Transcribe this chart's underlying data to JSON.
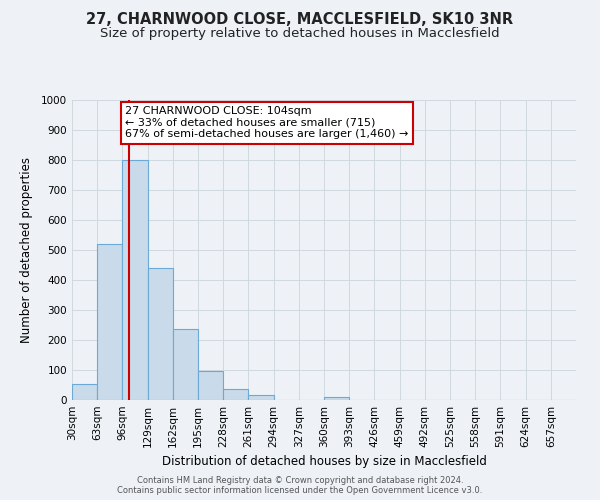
{
  "title": "27, CHARNWOOD CLOSE, MACCLESFIELD, SK10 3NR",
  "subtitle": "Size of property relative to detached houses in Macclesfield",
  "xlabel": "Distribution of detached houses by size in Macclesfield",
  "ylabel": "Number of detached properties",
  "bar_edges": [
    30,
    63,
    96,
    129,
    162,
    195,
    228,
    261,
    294,
    327,
    360,
    393,
    426,
    459,
    492,
    525,
    558,
    591,
    624,
    657,
    690
  ],
  "bar_heights": [
    52,
    520,
    800,
    440,
    238,
    97,
    38,
    18,
    0,
    0,
    10,
    0,
    0,
    0,
    0,
    0,
    0,
    0,
    0,
    0
  ],
  "bar_color": "#c9daea",
  "bar_edge_color": "#6aaad4",
  "property_size": 104,
  "vline_color": "#cc0000",
  "annotation_line1": "27 CHARNWOOD CLOSE: 104sqm",
  "annotation_line2": "← 33% of detached houses are smaller (715)",
  "annotation_line3": "67% of semi-detached houses are larger (1,460) →",
  "annotation_box_color": "#ffffff",
  "annotation_box_edge": "#cc0000",
  "ylim": [
    0,
    1000
  ],
  "yticks": [
    0,
    100,
    200,
    300,
    400,
    500,
    600,
    700,
    800,
    900,
    1000
  ],
  "grid_color": "#d0d8e0",
  "bg_color": "#eef2f7",
  "footer_line1": "Contains HM Land Registry data © Crown copyright and database right 2024.",
  "footer_line2": "Contains public sector information licensed under the Open Government Licence v3.0.",
  "title_fontsize": 10.5,
  "subtitle_fontsize": 9.5,
  "axis_label_fontsize": 8.5,
  "tick_label_fontsize": 7.5,
  "footer_fontsize": 6.0
}
